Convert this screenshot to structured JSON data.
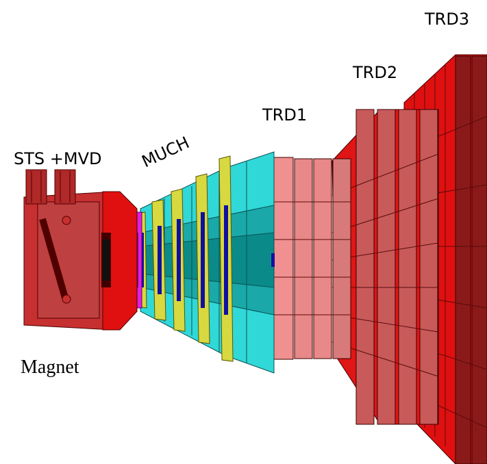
{
  "labels": {
    "trd3": "TRD3",
    "trd2": "TRD2",
    "trd1": "TRD1",
    "sts_mvd": "STS +MVD",
    "much": "MUCH",
    "magnet": "Magnet"
  }
}
